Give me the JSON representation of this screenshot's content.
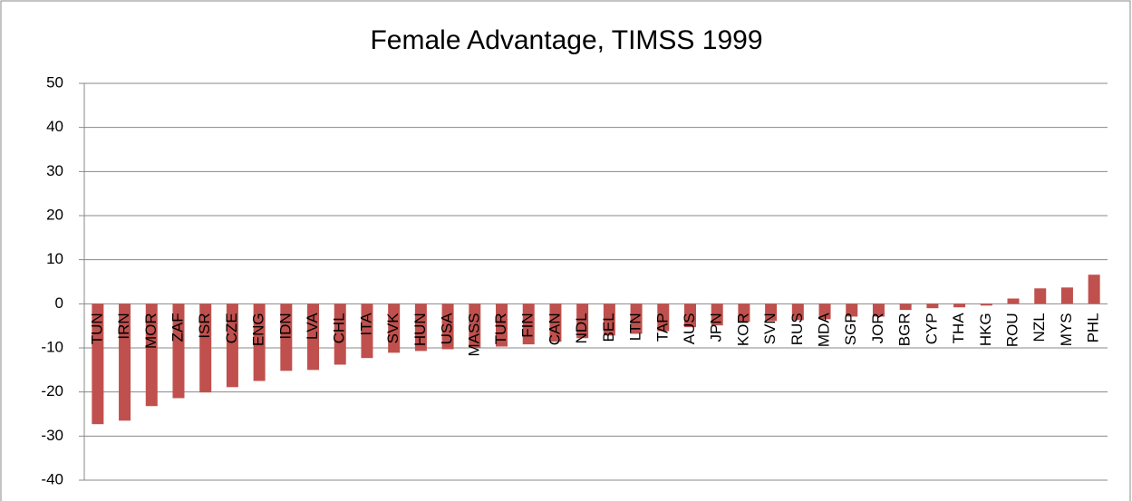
{
  "chart_data": {
    "type": "bar",
    "title": "Female Advantage, TIMSS 1999",
    "categories": [
      "TUN",
      "IRN",
      "MOR",
      "ZAF",
      "ISR",
      "CZE",
      "ENG",
      "IDN",
      "LVA",
      "CHL",
      "ITA",
      "SVK",
      "HUN",
      "USA",
      "MASS",
      "TUR",
      "FIN",
      "CAN",
      "NDL",
      "BEL",
      "LTN",
      "TAP",
      "AUS",
      "JPN",
      "KOR",
      "SVN",
      "RUS",
      "MDA",
      "SGP",
      "JOR",
      "BGR",
      "CYP",
      "THA",
      "HKG",
      "ROU",
      "NZL",
      "MYS",
      "PHL"
    ],
    "values": [
      -27.3,
      -26.5,
      -23.2,
      -21.4,
      -20.1,
      -18.9,
      -17.5,
      -15.2,
      -15,
      -13.8,
      -12.3,
      -11.1,
      -10.7,
      -10.3,
      -10,
      -9.7,
      -9.2,
      -8.6,
      -7.8,
      -7.2,
      -6.8,
      -6.2,
      -5.3,
      -4.9,
      -4.1,
      -3.9,
      -3.7,
      -3.5,
      -2.9,
      -2.9,
      -1.4,
      -1,
      -0.8,
      -0.4,
      1.2,
      3.5,
      3.7,
      6.6
    ],
    "color": "#c0504d",
    "ylim": [
      -40,
      50
    ],
    "yticks": [
      -40,
      -30,
      -20,
      -10,
      0,
      10,
      20,
      30,
      40,
      50
    ],
    "grid": true
  }
}
